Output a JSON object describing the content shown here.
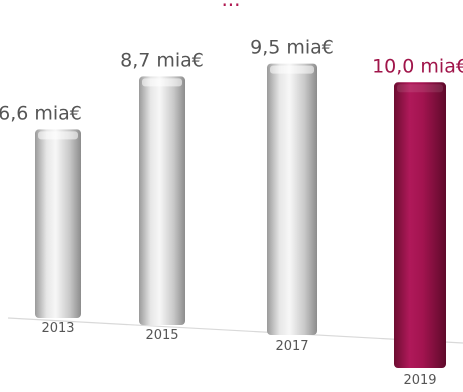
{
  "chart_data": {
    "type": "bar",
    "title_fragment": "...",
    "categories": [
      "2013",
      "2015",
      "2017",
      "2019"
    ],
    "values": [
      6.6,
      8.7,
      9.5,
      10.0
    ],
    "value_labels": [
      "6,6 mia€",
      "8,7 mia€",
      "9,5 mia€",
      "10,0 mia€"
    ],
    "unit": "mia€",
    "highlight_index": 3,
    "ylim": [
      0,
      10.5
    ],
    "grid": false,
    "legend": "none",
    "colors": {
      "bar": "#c8c8c8",
      "bar_highlight": "#9e1247",
      "label": "#555555",
      "label_highlight": "#a0154a",
      "baseline": "#d9d9d9"
    }
  }
}
